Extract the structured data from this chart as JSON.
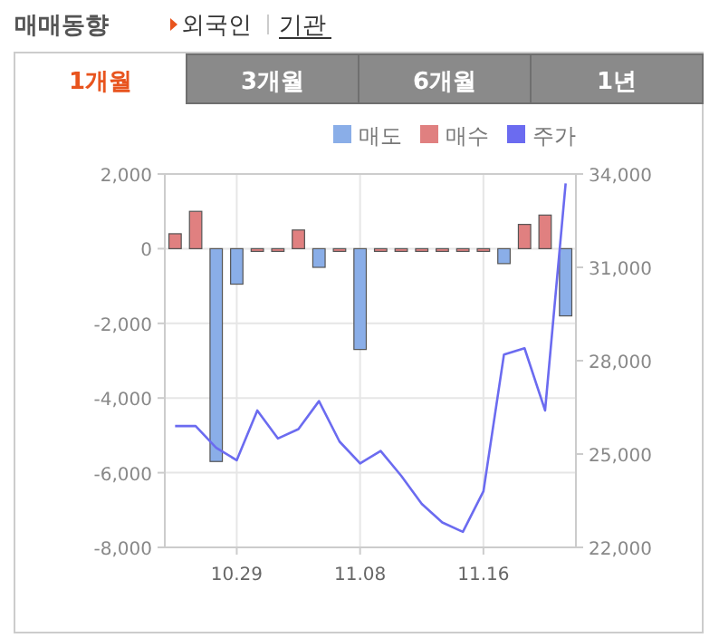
{
  "chart_data": {
    "type": "bar",
    "title": "매매동향",
    "annotations": [
      "외국인",
      "기관",
      "1개월",
      "3개월",
      "6개월",
      "1년"
    ],
    "categories": [
      null,
      null,
      null,
      "10.29",
      null,
      null,
      null,
      null,
      null,
      "11.08",
      null,
      null,
      null,
      null,
      null,
      "11.16",
      null,
      null,
      null,
      null
    ],
    "series": [
      {
        "name": "매도",
        "color": "#8aaee8",
        "values": [
          null,
          null,
          -5700,
          -950,
          null,
          null,
          null,
          -500,
          null,
          -2700,
          null,
          null,
          null,
          null,
          null,
          null,
          -400,
          null,
          null,
          -1800
        ]
      },
      {
        "name": "매수",
        "color": "#e08080",
        "values": [
          400,
          1000,
          null,
          null,
          0,
          0,
          500,
          null,
          0,
          null,
          0,
          0,
          0,
          0,
          0,
          0,
          null,
          650,
          900,
          null
        ]
      },
      {
        "name": "주가",
        "type": "line",
        "axis": "y2",
        "color": "#6b6bf0",
        "values": [
          25900,
          25900,
          25200,
          24800,
          26400,
          25500,
          25800,
          26700,
          25400,
          24700,
          25100,
          24300,
          23400,
          22800,
          22500,
          23800,
          28200,
          28400,
          26400,
          33700
        ]
      }
    ],
    "ylim": [
      -8000,
      2000
    ],
    "yticks": [
      {
        "value": 2000,
        "label": "2,000"
      },
      0,
      {
        "value": -2000,
        "label": "-2,000"
      },
      {
        "value": -4000,
        "label": "-4,000"
      },
      {
        "value": -6000,
        "label": "-6,000"
      },
      {
        "value": -8000,
        "label": "-8,000"
      }
    ],
    "y2lim": [
      22000,
      34000
    ],
    "y2ticks": [
      {
        "value": 34000,
        "label": "34,000"
      },
      {
        "value": 31000,
        "label": "31,000"
      },
      {
        "value": 28000,
        "label": "28,000"
      },
      {
        "value": 25000,
        "label": "25,000"
      },
      {
        "value": 22000,
        "label": "22,000"
      }
    ],
    "grid": true,
    "legend": "top right"
  }
}
